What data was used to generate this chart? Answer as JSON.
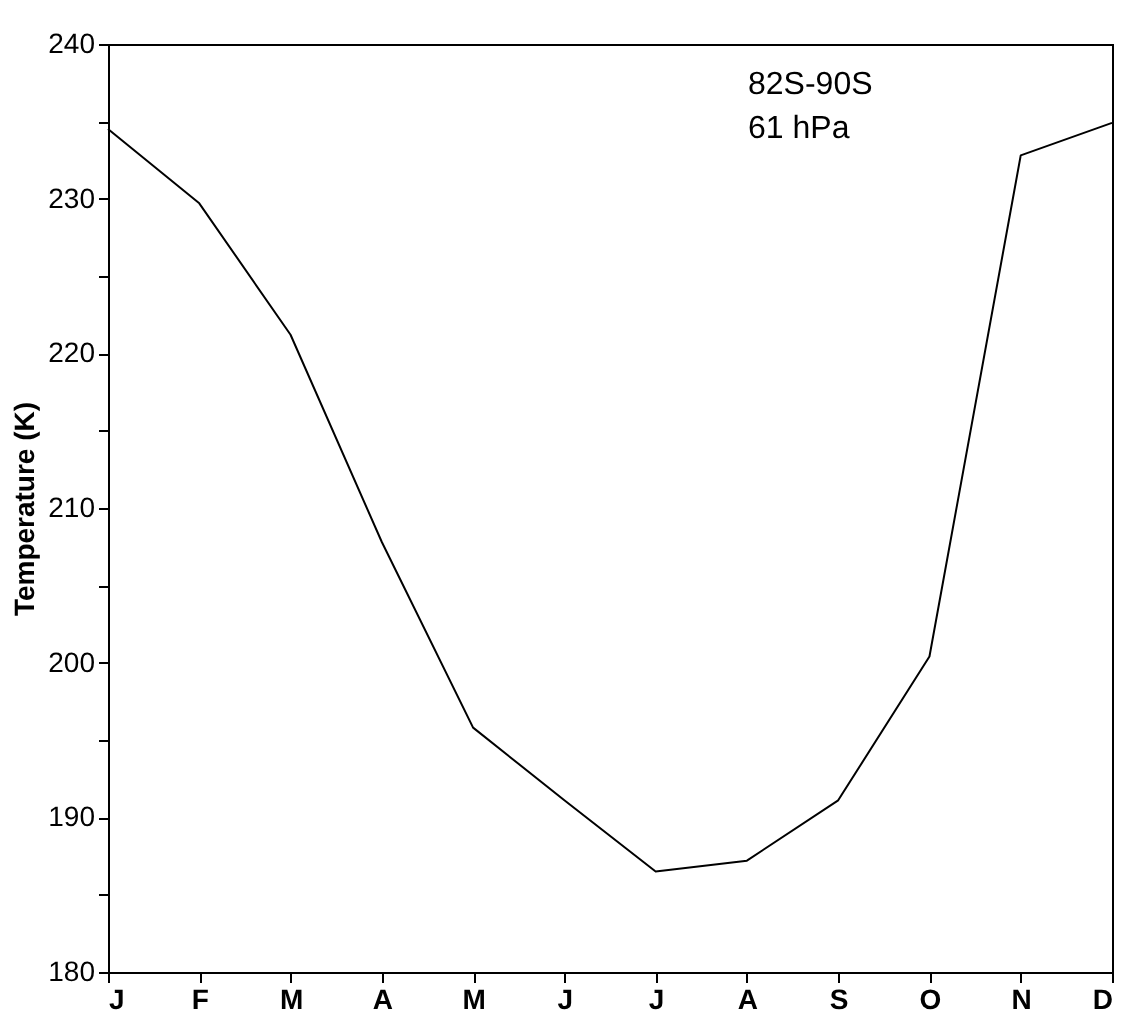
{
  "chart_data": {
    "type": "line",
    "ylabel": "Temperature (K)",
    "categories": [
      "J",
      "F",
      "M",
      "A",
      "M",
      "J",
      "J",
      "A",
      "S",
      "O",
      "N",
      "D"
    ],
    "series": [
      {
        "color": "#000000",
        "values": [
          234.5,
          229.7,
          221.2,
          207.8,
          195.8,
          191.1,
          186.5,
          187.2,
          191.1,
          200.4,
          232.8,
          234.9
        ]
      }
    ],
    "ylim": [
      180,
      240
    ],
    "yticks": [
      180,
      {
        "value": 185,
        "label": null
      },
      190,
      {
        "value": 195,
        "label": null
      },
      200,
      {
        "value": 205,
        "label": null
      },
      210,
      {
        "value": 215,
        "label": null
      },
      220,
      {
        "value": 225,
        "label": null
      },
      230,
      {
        "value": 235,
        "label": null
      },
      240
    ],
    "annotations": [
      "82S-90S",
      "61 hPa"
    ],
    "grid": false,
    "marker": "none",
    "line_style": "solid"
  }
}
